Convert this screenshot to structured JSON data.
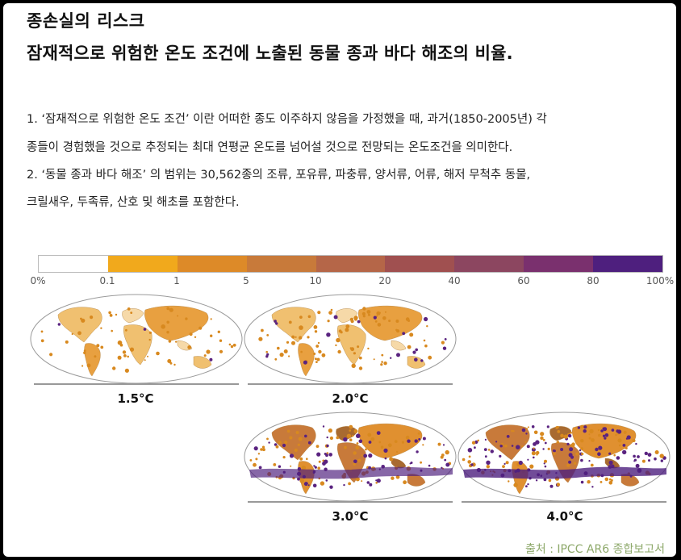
{
  "header": {
    "title_line1": "종손실의 리스크",
    "title_line2": "잠재적으로 위험한 온도 조건에 노출된 동물 종과 바다 해조의 비율."
  },
  "notes": [
    "1. ‘잠재적으로 위험한 온도 조건’ 이란 어떠한 종도 이주하지 않음을 가정했을 때, 과거(1850-2005년) 각",
    "종들이 경험했을 것으로 추정되는 최대 연평균 온도를 넘어설 것으로 전망되는 온도조건을 의미한다.",
    "2. ‘동물 종과 바다 해조’ 의 범위는 30,562종의 조류, 포유류, 파충류, 양서류, 어류, 해저 무척추 동물,",
    "크릴새우, 두족류, 산호 및 해초를 포함한다."
  ],
  "legend": {
    "tick_labels": [
      "0%",
      "0.1",
      "1",
      "5",
      "10",
      "20",
      "40",
      "60",
      "80",
      "100%"
    ],
    "colors": [
      "#ffffff",
      "#f1a91c",
      "#dd8a28",
      "#c87a3a",
      "#b56648",
      "#a05050",
      "#8c4660",
      "#7a306e",
      "#4e1f7e"
    ]
  },
  "maps": [
    {
      "label": "1.5°C",
      "level": 0.15
    },
    {
      "label": "2.0°C",
      "level": 0.35
    },
    {
      "label": "3.0°C",
      "level": 0.65
    },
    {
      "label": "4.0°C",
      "level": 0.9
    }
  ],
  "source": "출처 : IPCC AR6 종합보고서"
}
